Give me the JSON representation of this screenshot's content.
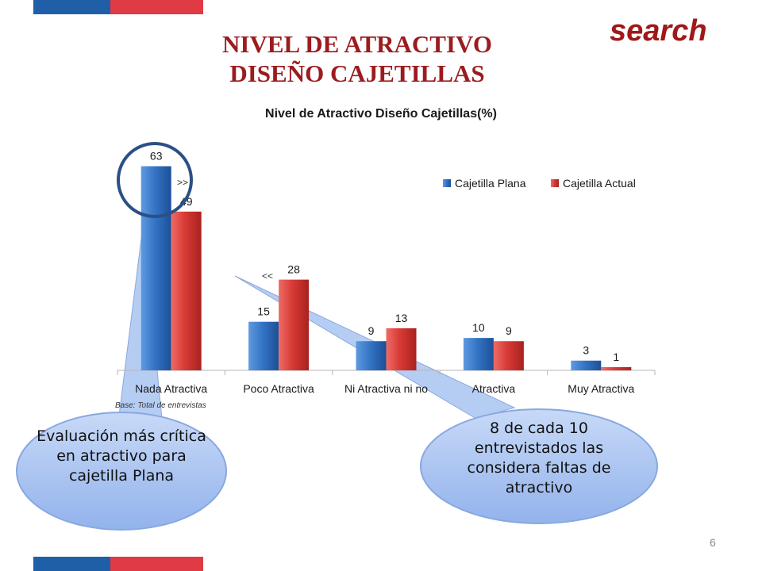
{
  "header": {
    "search_label": "search",
    "title_line1": "NIVEL DE ATRACTIVO",
    "title_line2": "DISEÑO CAJETILLAS",
    "page_number": "6"
  },
  "chart_data": {
    "type": "bar",
    "title": "Nivel de Atractivo Diseño Cajetillas(%)",
    "xlabel": "",
    "ylabel": "",
    "categories": [
      "Nada Atractiva",
      "Poco Atractiva",
      "Ni Atractiva ni no",
      "Atractiva",
      "Muy Atractiva"
    ],
    "series": [
      {
        "name": "Cajetilla Plana",
        "values": [
          63,
          15,
          9,
          10,
          3
        ],
        "color": "#2f6fbd"
      },
      {
        "name": "Cajetilla Actual",
        "values": [
          49,
          28,
          13,
          9,
          1
        ],
        "color": "#d93a36"
      }
    ],
    "ylim": [
      0,
      70
    ],
    "grid": false,
    "legend_position": "top-right",
    "annotations": {
      "greater_mark": ">>",
      "less_mark": "<<",
      "base_note": "Base: Total  de entrevistas"
    }
  },
  "callouts": {
    "left_text": "Evaluación más crítica en atractivo para cajetilla Plana",
    "right_text": "8 de cada 10 entrevistados las considera faltas de atractivo"
  },
  "colors": {
    "flag_blue": "#1f5fa8",
    "flag_red": "#e03a45",
    "title_red": "#9b1c1f",
    "callout_fill": "#9fbdf0",
    "circle_stroke": "#2b4f86"
  }
}
